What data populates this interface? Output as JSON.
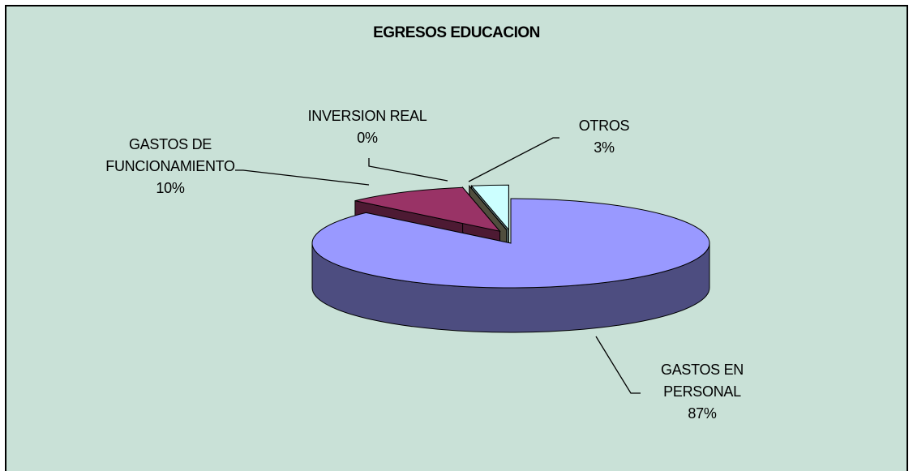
{
  "chart_data": {
    "type": "pie",
    "title": "EGRESOS EDUCACION",
    "categories": [
      "GASTOS EN PERSONAL",
      "GASTOS DE FUNCIONAMIENTO",
      "INVERSION REAL",
      "OTROS"
    ],
    "values": [
      87,
      10,
      0,
      3
    ],
    "value_labels": [
      "87%",
      "10%",
      "0%",
      "3%"
    ],
    "colors": [
      "#9999ff",
      "#993366",
      "#a09b7c",
      "#ccffff"
    ]
  }
}
